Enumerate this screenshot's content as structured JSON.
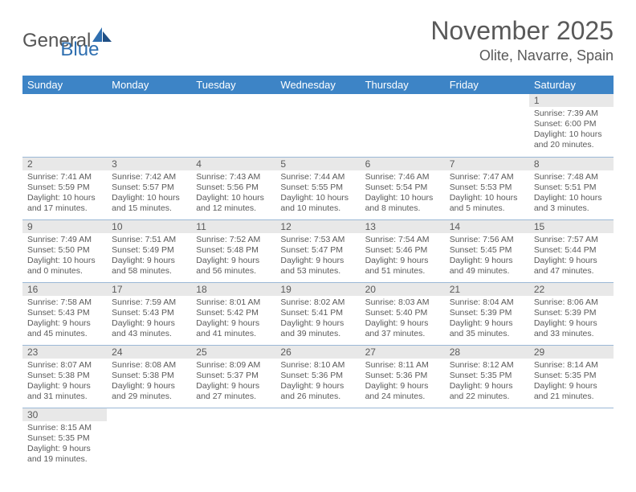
{
  "logo": {
    "text_general": "General",
    "text_blue": "Blue"
  },
  "header": {
    "month_title": "November 2025",
    "location": "Olite, Navarre, Spain"
  },
  "day_names": [
    "Sunday",
    "Monday",
    "Tuesday",
    "Wednesday",
    "Thursday",
    "Friday",
    "Saturday"
  ],
  "colors": {
    "header_bg": "#3d84c6",
    "header_fg": "#ffffff",
    "daynum_bg": "#e8e8e8",
    "text": "#5a5a5a",
    "row_border": "#9bb8d6",
    "logo_blue": "#2f6fb0"
  },
  "weeks": [
    [
      null,
      null,
      null,
      null,
      null,
      null,
      {
        "n": "1",
        "sunrise": "Sunrise: 7:39 AM",
        "sunset": "Sunset: 6:00 PM",
        "day1": "Daylight: 10 hours",
        "day2": "and 20 minutes."
      }
    ],
    [
      {
        "n": "2",
        "sunrise": "Sunrise: 7:41 AM",
        "sunset": "Sunset: 5:59 PM",
        "day1": "Daylight: 10 hours",
        "day2": "and 17 minutes."
      },
      {
        "n": "3",
        "sunrise": "Sunrise: 7:42 AM",
        "sunset": "Sunset: 5:57 PM",
        "day1": "Daylight: 10 hours",
        "day2": "and 15 minutes."
      },
      {
        "n": "4",
        "sunrise": "Sunrise: 7:43 AM",
        "sunset": "Sunset: 5:56 PM",
        "day1": "Daylight: 10 hours",
        "day2": "and 12 minutes."
      },
      {
        "n": "5",
        "sunrise": "Sunrise: 7:44 AM",
        "sunset": "Sunset: 5:55 PM",
        "day1": "Daylight: 10 hours",
        "day2": "and 10 minutes."
      },
      {
        "n": "6",
        "sunrise": "Sunrise: 7:46 AM",
        "sunset": "Sunset: 5:54 PM",
        "day1": "Daylight: 10 hours",
        "day2": "and 8 minutes."
      },
      {
        "n": "7",
        "sunrise": "Sunrise: 7:47 AM",
        "sunset": "Sunset: 5:53 PM",
        "day1": "Daylight: 10 hours",
        "day2": "and 5 minutes."
      },
      {
        "n": "8",
        "sunrise": "Sunrise: 7:48 AM",
        "sunset": "Sunset: 5:51 PM",
        "day1": "Daylight: 10 hours",
        "day2": "and 3 minutes."
      }
    ],
    [
      {
        "n": "9",
        "sunrise": "Sunrise: 7:49 AM",
        "sunset": "Sunset: 5:50 PM",
        "day1": "Daylight: 10 hours",
        "day2": "and 0 minutes."
      },
      {
        "n": "10",
        "sunrise": "Sunrise: 7:51 AM",
        "sunset": "Sunset: 5:49 PM",
        "day1": "Daylight: 9 hours",
        "day2": "and 58 minutes."
      },
      {
        "n": "11",
        "sunrise": "Sunrise: 7:52 AM",
        "sunset": "Sunset: 5:48 PM",
        "day1": "Daylight: 9 hours",
        "day2": "and 56 minutes."
      },
      {
        "n": "12",
        "sunrise": "Sunrise: 7:53 AM",
        "sunset": "Sunset: 5:47 PM",
        "day1": "Daylight: 9 hours",
        "day2": "and 53 minutes."
      },
      {
        "n": "13",
        "sunrise": "Sunrise: 7:54 AM",
        "sunset": "Sunset: 5:46 PM",
        "day1": "Daylight: 9 hours",
        "day2": "and 51 minutes."
      },
      {
        "n": "14",
        "sunrise": "Sunrise: 7:56 AM",
        "sunset": "Sunset: 5:45 PM",
        "day1": "Daylight: 9 hours",
        "day2": "and 49 minutes."
      },
      {
        "n": "15",
        "sunrise": "Sunrise: 7:57 AM",
        "sunset": "Sunset: 5:44 PM",
        "day1": "Daylight: 9 hours",
        "day2": "and 47 minutes."
      }
    ],
    [
      {
        "n": "16",
        "sunrise": "Sunrise: 7:58 AM",
        "sunset": "Sunset: 5:43 PM",
        "day1": "Daylight: 9 hours",
        "day2": "and 45 minutes."
      },
      {
        "n": "17",
        "sunrise": "Sunrise: 7:59 AM",
        "sunset": "Sunset: 5:43 PM",
        "day1": "Daylight: 9 hours",
        "day2": "and 43 minutes."
      },
      {
        "n": "18",
        "sunrise": "Sunrise: 8:01 AM",
        "sunset": "Sunset: 5:42 PM",
        "day1": "Daylight: 9 hours",
        "day2": "and 41 minutes."
      },
      {
        "n": "19",
        "sunrise": "Sunrise: 8:02 AM",
        "sunset": "Sunset: 5:41 PM",
        "day1": "Daylight: 9 hours",
        "day2": "and 39 minutes."
      },
      {
        "n": "20",
        "sunrise": "Sunrise: 8:03 AM",
        "sunset": "Sunset: 5:40 PM",
        "day1": "Daylight: 9 hours",
        "day2": "and 37 minutes."
      },
      {
        "n": "21",
        "sunrise": "Sunrise: 8:04 AM",
        "sunset": "Sunset: 5:39 PM",
        "day1": "Daylight: 9 hours",
        "day2": "and 35 minutes."
      },
      {
        "n": "22",
        "sunrise": "Sunrise: 8:06 AM",
        "sunset": "Sunset: 5:39 PM",
        "day1": "Daylight: 9 hours",
        "day2": "and 33 minutes."
      }
    ],
    [
      {
        "n": "23",
        "sunrise": "Sunrise: 8:07 AM",
        "sunset": "Sunset: 5:38 PM",
        "day1": "Daylight: 9 hours",
        "day2": "and 31 minutes."
      },
      {
        "n": "24",
        "sunrise": "Sunrise: 8:08 AM",
        "sunset": "Sunset: 5:38 PM",
        "day1": "Daylight: 9 hours",
        "day2": "and 29 minutes."
      },
      {
        "n": "25",
        "sunrise": "Sunrise: 8:09 AM",
        "sunset": "Sunset: 5:37 PM",
        "day1": "Daylight: 9 hours",
        "day2": "and 27 minutes."
      },
      {
        "n": "26",
        "sunrise": "Sunrise: 8:10 AM",
        "sunset": "Sunset: 5:36 PM",
        "day1": "Daylight: 9 hours",
        "day2": "and 26 minutes."
      },
      {
        "n": "27",
        "sunrise": "Sunrise: 8:11 AM",
        "sunset": "Sunset: 5:36 PM",
        "day1": "Daylight: 9 hours",
        "day2": "and 24 minutes."
      },
      {
        "n": "28",
        "sunrise": "Sunrise: 8:12 AM",
        "sunset": "Sunset: 5:35 PM",
        "day1": "Daylight: 9 hours",
        "day2": "and 22 minutes."
      },
      {
        "n": "29",
        "sunrise": "Sunrise: 8:14 AM",
        "sunset": "Sunset: 5:35 PM",
        "day1": "Daylight: 9 hours",
        "day2": "and 21 minutes."
      }
    ],
    [
      {
        "n": "30",
        "sunrise": "Sunrise: 8:15 AM",
        "sunset": "Sunset: 5:35 PM",
        "day1": "Daylight: 9 hours",
        "day2": "and 19 minutes."
      },
      null,
      null,
      null,
      null,
      null,
      null
    ]
  ]
}
